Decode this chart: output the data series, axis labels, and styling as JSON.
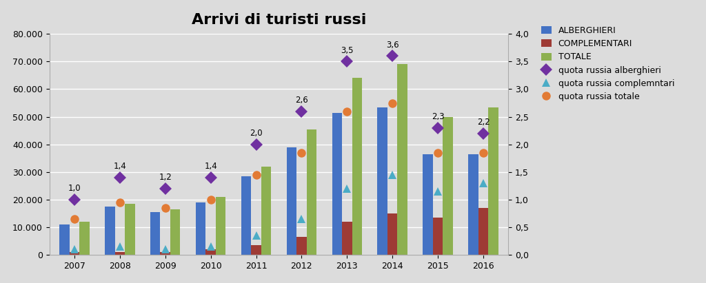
{
  "title": "Arrivi di turisti russi",
  "years": [
    2007,
    2008,
    2009,
    2010,
    2011,
    2012,
    2013,
    2014,
    2015,
    2016
  ],
  "alberghieri": [
    11000,
    17500,
    15500,
    19000,
    28500,
    39000,
    51500,
    53500,
    36500,
    36500
  ],
  "complementari": [
    1000,
    1000,
    1000,
    2000,
    3500,
    6500,
    12000,
    15000,
    13500,
    17000
  ],
  "totale": [
    12000,
    18500,
    16500,
    21000,
    32000,
    45500,
    64000,
    69000,
    50000,
    53500
  ],
  "quota_alberghieri": [
    1.0,
    1.4,
    1.2,
    1.4,
    2.0,
    2.6,
    3.5,
    3.6,
    2.3,
    2.2
  ],
  "quota_complementari": [
    0.1,
    0.15,
    0.1,
    0.15,
    0.35,
    0.65,
    1.2,
    1.45,
    1.15,
    1.3
  ],
  "quota_totale": [
    0.65,
    0.95,
    0.85,
    1.0,
    1.45,
    1.85,
    2.6,
    2.75,
    1.85,
    1.85
  ],
  "bar_color_alb": "#4472C4",
  "bar_color_comp": "#9E3B35",
  "bar_color_tot": "#8DB050",
  "line_color_alb": "#7030A0",
  "line_color_comp": "#4BACC6",
  "line_color_tot": "#E27B35",
  "ylim_left": [
    0,
    80000
  ],
  "ylim_right": [
    0,
    4.0
  ],
  "yticks_left": [
    0,
    10000,
    20000,
    30000,
    40000,
    50000,
    60000,
    70000,
    80000
  ],
  "yticks_right": [
    0.0,
    0.5,
    1.0,
    1.5,
    2.0,
    2.5,
    3.0,
    3.5,
    4.0
  ],
  "background_color": "#DCDCDC",
  "plot_bg_color": "#DCDCDC",
  "bar_width": 0.22,
  "legend_fontsize": 9,
  "title_fontsize": 16
}
